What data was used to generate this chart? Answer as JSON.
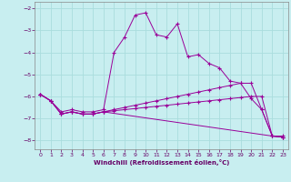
{
  "xlabel": "Windchill (Refroidissement éolien,°C)",
  "bg_color": "#c8eef0",
  "grid_color": "#aadddd",
  "line_color": "#990099",
  "xlim": [
    -0.5,
    23.5
  ],
  "ylim": [
    -8.4,
    -1.7
  ],
  "yticks": [
    -8,
    -7,
    -6,
    -5,
    -4,
    -3,
    -2
  ],
  "xticks": [
    0,
    1,
    2,
    3,
    4,
    5,
    6,
    7,
    8,
    9,
    10,
    11,
    12,
    13,
    14,
    15,
    16,
    17,
    18,
    19,
    20,
    21,
    22,
    23
  ],
  "series1_x": [
    0,
    1,
    2,
    3,
    4,
    5,
    6,
    7,
    8,
    9,
    10,
    11,
    12,
    13,
    14,
    15,
    16,
    17,
    18,
    19,
    20,
    21,
    22,
    23
  ],
  "series1_y": [
    -5.9,
    -6.2,
    -6.7,
    -6.6,
    -6.7,
    -6.7,
    -6.6,
    -4.0,
    -3.3,
    -2.3,
    -2.2,
    -3.2,
    -3.3,
    -2.7,
    -4.2,
    -4.1,
    -4.5,
    -4.7,
    -5.3,
    -5.4,
    -6.1,
    -6.6,
    -7.8,
    -7.8
  ],
  "series2_x": [
    0,
    1,
    2,
    3,
    4,
    5,
    6,
    22,
    23
  ],
  "series2_y": [
    -5.9,
    -6.2,
    -6.8,
    -6.7,
    -6.8,
    -6.8,
    -6.7,
    -7.8,
    -7.85
  ],
  "series3_x": [
    0,
    1,
    2,
    3,
    4,
    5,
    6,
    7,
    8,
    9,
    10,
    11,
    12,
    13,
    14,
    15,
    16,
    17,
    18,
    19,
    20,
    21,
    22,
    23
  ],
  "series3_y": [
    -5.9,
    -6.2,
    -6.8,
    -6.7,
    -6.8,
    -6.8,
    -6.7,
    -6.65,
    -6.6,
    -6.55,
    -6.5,
    -6.45,
    -6.4,
    -6.35,
    -6.3,
    -6.25,
    -6.2,
    -6.15,
    -6.1,
    -6.05,
    -6.0,
    -6.0,
    -7.8,
    -7.85
  ],
  "series4_x": [
    0,
    1,
    2,
    3,
    4,
    5,
    6,
    7,
    8,
    9,
    10,
    11,
    12,
    13,
    14,
    15,
    16,
    17,
    18,
    19,
    20,
    21,
    22,
    23
  ],
  "series4_y": [
    -5.9,
    -6.2,
    -6.8,
    -6.7,
    -6.8,
    -6.8,
    -6.7,
    -6.6,
    -6.5,
    -6.4,
    -6.3,
    -6.2,
    -6.1,
    -6.0,
    -5.9,
    -5.8,
    -5.7,
    -5.6,
    -5.5,
    -5.4,
    -5.4,
    -6.6,
    -7.8,
    -7.85
  ]
}
